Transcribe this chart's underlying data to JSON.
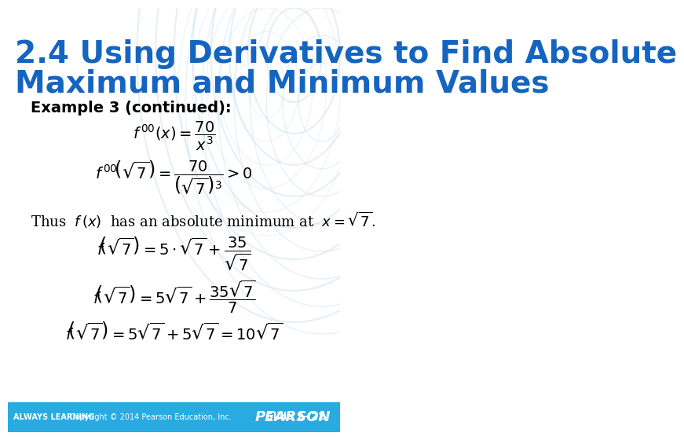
{
  "title_line1": "2.4 Using Derivatives to Find Absolute",
  "title_line2": "Maximum and Minimum Values",
  "title_color": "#1565c0",
  "title_fontsize": 28,
  "bg_color": "#ffffff",
  "header_bg": "#29abe2",
  "header_text_color": "#ffffff",
  "header_left": "ALWAYS LEARNING",
  "header_center": "Copyright © 2014 Pearson Education, Inc.",
  "header_right": "Slide 2- 22",
  "header_pearson": "PEARSON",
  "example_label": "Example 3 (continued):",
  "body_text_color": "#000000",
  "watermark_color": "#cce0f0"
}
